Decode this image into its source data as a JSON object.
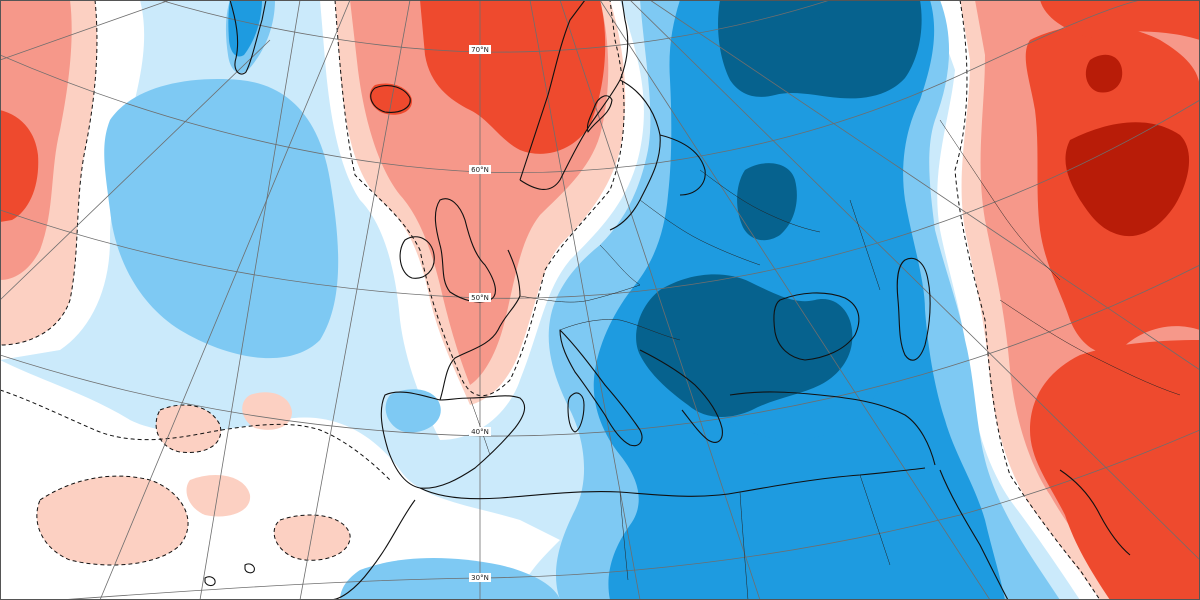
{
  "map": {
    "type": "anomaly-map",
    "projection": "polar-stereographic",
    "region": "North Atlantic and Europe",
    "colors": {
      "neg_strong": "#06628e",
      "neg_mid": "#1e9be0",
      "neg_light": "#7ec9f3",
      "neg_faint": "#cbeafb",
      "pos_faint": "#fcd0c2",
      "pos_light": "#f6988a",
      "pos_mid": "#ee4a2e",
      "pos_strong": "#b81c08",
      "neutral": "#ffffff",
      "coast": "#111111",
      "graticule": "#6e6e6e"
    },
    "latitude_labels": [
      "70°N",
      "60°N",
      "50°N",
      "40°N",
      "30°N"
    ]
  }
}
